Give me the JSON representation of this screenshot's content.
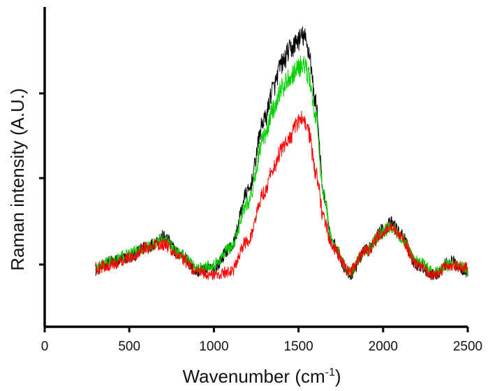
{
  "chart_data": {
    "type": "line",
    "title": "",
    "xlabel": "Wavenumber (cm",
    "xlabel_sup": "-1",
    "xlabel_suffix": ")",
    "ylabel": "Raman intensity (A.U.)",
    "xlim": [
      0,
      2500
    ],
    "ylim": [
      0,
      1.85
    ],
    "xticks": [
      0,
      500,
      1000,
      1500,
      2000,
      2500
    ],
    "xtick_labels": [
      "0",
      "500",
      "1000",
      "1500",
      "2000",
      "2500"
    ],
    "yticks": [
      0.36,
      0.86,
      1.35
    ],
    "ytick_labels": [],
    "grid": false,
    "legend": "none",
    "noise_amplitude": 0.045,
    "series": [
      {
        "color": "#000000",
        "x": [
          300,
          400,
          500,
          600,
          700,
          800,
          900,
          1000,
          1100,
          1200,
          1300,
          1350,
          1400,
          1450,
          1500,
          1530,
          1560,
          1600,
          1650,
          1700,
          1800,
          1900,
          2000,
          2050,
          2100,
          2200,
          2300,
          2400,
          2500
        ],
        "y": [
          0.33,
          0.38,
          0.4,
          0.46,
          0.52,
          0.42,
          0.32,
          0.34,
          0.46,
          0.78,
          1.2,
          1.38,
          1.52,
          1.6,
          1.66,
          1.68,
          1.6,
          1.3,
          0.75,
          0.48,
          0.3,
          0.44,
          0.56,
          0.6,
          0.54,
          0.36,
          0.3,
          0.38,
          0.32
        ]
      },
      {
        "color": "#00d000",
        "x": [
          300,
          400,
          500,
          600,
          700,
          800,
          900,
          1000,
          1100,
          1200,
          1300,
          1350,
          1400,
          1450,
          1500,
          1530,
          1560,
          1600,
          1650,
          1700,
          1800,
          1900,
          2000,
          2050,
          2100,
          2200,
          2300,
          2400,
          2500
        ],
        "y": [
          0.34,
          0.38,
          0.42,
          0.46,
          0.5,
          0.42,
          0.34,
          0.36,
          0.46,
          0.72,
          1.1,
          1.26,
          1.38,
          1.45,
          1.5,
          1.52,
          1.45,
          1.22,
          0.75,
          0.48,
          0.32,
          0.44,
          0.55,
          0.58,
          0.52,
          0.38,
          0.32,
          0.36,
          0.34
        ]
      },
      {
        "color": "#ff0000",
        "x": [
          300,
          400,
          500,
          600,
          700,
          800,
          900,
          1000,
          1100,
          1200,
          1300,
          1350,
          1400,
          1450,
          1500,
          1530,
          1560,
          1600,
          1650,
          1700,
          1800,
          1900,
          2000,
          2050,
          2100,
          2200,
          2300,
          2400,
          2500
        ],
        "y": [
          0.34,
          0.36,
          0.4,
          0.46,
          0.48,
          0.4,
          0.32,
          0.3,
          0.32,
          0.5,
          0.78,
          0.92,
          1.02,
          1.1,
          1.18,
          1.22,
          1.12,
          0.9,
          0.62,
          0.46,
          0.32,
          0.44,
          0.54,
          0.58,
          0.52,
          0.36,
          0.3,
          0.36,
          0.34
        ]
      }
    ]
  }
}
